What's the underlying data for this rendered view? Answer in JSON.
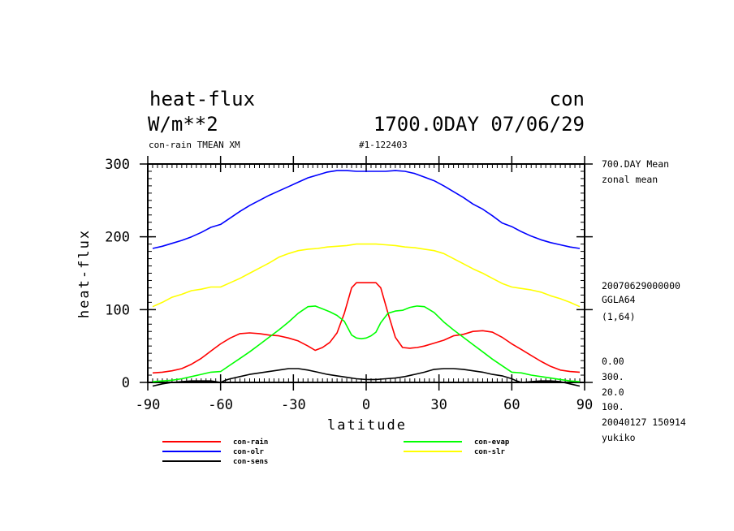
{
  "header": {
    "title_left": "heat-flux",
    "title_right": "con",
    "units": "W/m**2",
    "date": "1700.0DAY 07/06/29",
    "subtitle_left": "con-rain TMEAN XM",
    "subtitle_right": "#1-122403"
  },
  "side_notes": [
    "700.DAY Mean",
    "zonal mean",
    "20070629000000",
    "GGLA64",
    "(1,64)",
    "0.00",
    "300.",
    "20.0",
    "100.",
    "20040127 150914",
    "yukiko"
  ],
  "chart_data": {
    "type": "line",
    "xlabel": "latitude",
    "ylabel": "heat-flux",
    "xlim": [
      -90,
      90
    ],
    "ylim": [
      0,
      300
    ],
    "xticks": [
      -90,
      -60,
      -30,
      0,
      30,
      60,
      90
    ],
    "yticks": [
      0,
      100,
      200,
      300
    ],
    "grid": false,
    "legend_position": "bottom",
    "series": [
      {
        "name": "con-rain",
        "color": "#ff0000",
        "x": [
          -88,
          -84,
          -80,
          -76,
          -72,
          -68,
          -64,
          -60,
          -56,
          -52,
          -48,
          -44,
          -40,
          -36,
          -32,
          -28,
          -24,
          -21,
          -18,
          -15,
          -12,
          -9,
          -6,
          -4,
          -2,
          0,
          2,
          4,
          6,
          9,
          12,
          15,
          18,
          21,
          24,
          28,
          32,
          36,
          40,
          44,
          48,
          52,
          56,
          60,
          64,
          68,
          72,
          76,
          80,
          84,
          88
        ],
        "y": [
          13,
          14,
          16,
          19,
          25,
          33,
          43,
          53,
          61,
          67,
          68,
          67,
          65,
          64,
          61,
          57,
          50,
          44,
          48,
          55,
          68,
          95,
          130,
          137,
          137,
          137,
          137,
          137,
          130,
          95,
          62,
          48,
          47,
          48,
          50,
          54,
          58,
          64,
          66,
          70,
          71,
          69,
          62,
          53,
          45,
          37,
          29,
          22,
          17,
          15,
          14
        ]
      },
      {
        "name": "con-evap",
        "color": "#00ff00",
        "x": [
          -88,
          -84,
          -80,
          -76,
          -72,
          -68,
          -64,
          -60,
          -56,
          -52,
          -48,
          -44,
          -40,
          -36,
          -32,
          -28,
          -24,
          -21,
          -18,
          -15,
          -12,
          -9,
          -6,
          -4,
          -2,
          0,
          2,
          4,
          6,
          9,
          12,
          15,
          18,
          21,
          24,
          28,
          32,
          36,
          40,
          44,
          48,
          52,
          56,
          60,
          64,
          68,
          72,
          76,
          80,
          84,
          88
        ],
        "y": [
          1,
          2,
          3,
          5,
          8,
          11,
          14,
          15,
          24,
          33,
          42,
          52,
          62,
          72,
          83,
          95,
          104,
          105,
          101,
          97,
          92,
          84,
          65,
          61,
          60,
          61,
          64,
          69,
          82,
          95,
          98,
          99,
          103,
          105,
          104,
          96,
          83,
          72,
          62,
          52,
          42,
          32,
          23,
          14,
          13,
          10,
          8,
          6,
          4,
          2,
          1
        ]
      },
      {
        "name": "con-olr",
        "color": "#0000ff",
        "x": [
          -88,
          -84,
          -80,
          -76,
          -72,
          -68,
          -64,
          -60,
          -56,
          -52,
          -48,
          -44,
          -40,
          -36,
          -32,
          -28,
          -24,
          -20,
          -16,
          -12,
          -8,
          -4,
          0,
          4,
          8,
          12,
          16,
          20,
          24,
          28,
          32,
          36,
          40,
          44,
          48,
          52,
          56,
          60,
          64,
          68,
          72,
          76,
          80,
          84,
          88
        ],
        "y": [
          184,
          187,
          191,
          195,
          200,
          206,
          213,
          217,
          226,
          235,
          243,
          250,
          257,
          263,
          269,
          275,
          281,
          285,
          289,
          291,
          291,
          290,
          290,
          290,
          290,
          291,
          290,
          287,
          282,
          277,
          270,
          262,
          254,
          245,
          238,
          229,
          219,
          214,
          207,
          201,
          196,
          192,
          189,
          186,
          184
        ]
      },
      {
        "name": "con-slr",
        "color": "#ffff00",
        "x": [
          -88,
          -84,
          -80,
          -76,
          -72,
          -68,
          -64,
          -60,
          -56,
          -52,
          -48,
          -44,
          -40,
          -36,
          -32,
          -28,
          -24,
          -20,
          -16,
          -12,
          -8,
          -4,
          0,
          4,
          8,
          12,
          16,
          20,
          24,
          28,
          32,
          36,
          40,
          44,
          48,
          52,
          56,
          60,
          64,
          68,
          72,
          76,
          80,
          84,
          88
        ],
        "y": [
          104,
          110,
          117,
          121,
          126,
          128,
          131,
          131,
          137,
          143,
          150,
          157,
          164,
          172,
          177,
          181,
          183,
          184,
          186,
          187,
          188,
          190,
          190,
          190,
          189,
          188,
          186,
          185,
          183,
          181,
          177,
          170,
          163,
          156,
          150,
          143,
          136,
          131,
          129,
          127,
          124,
          119,
          115,
          110,
          104
        ]
      },
      {
        "name": "con-sens",
        "color": "#000000",
        "x": [
          -88,
          -84,
          -80,
          -76,
          -72,
          -68,
          -64,
          -62,
          -60,
          -58,
          -56,
          -52,
          -48,
          -44,
          -40,
          -36,
          -32,
          -28,
          -24,
          -20,
          -16,
          -12,
          -8,
          -4,
          0,
          4,
          8,
          12,
          16,
          20,
          24,
          28,
          32,
          36,
          40,
          44,
          48,
          52,
          56,
          60,
          62,
          64,
          68,
          72,
          76,
          80,
          84,
          88
        ],
        "y": [
          -5,
          -2,
          0,
          1,
          2,
          2,
          2,
          1,
          0,
          3,
          5,
          8,
          11,
          13,
          15,
          17,
          19,
          19,
          17,
          14,
          11,
          9,
          7,
          5,
          4,
          4,
          5,
          6,
          8,
          11,
          14,
          18,
          19,
          19,
          18,
          16,
          14,
          11,
          9,
          5,
          2,
          0,
          1,
          2,
          2,
          1,
          -2,
          -5
        ]
      }
    ]
  }
}
